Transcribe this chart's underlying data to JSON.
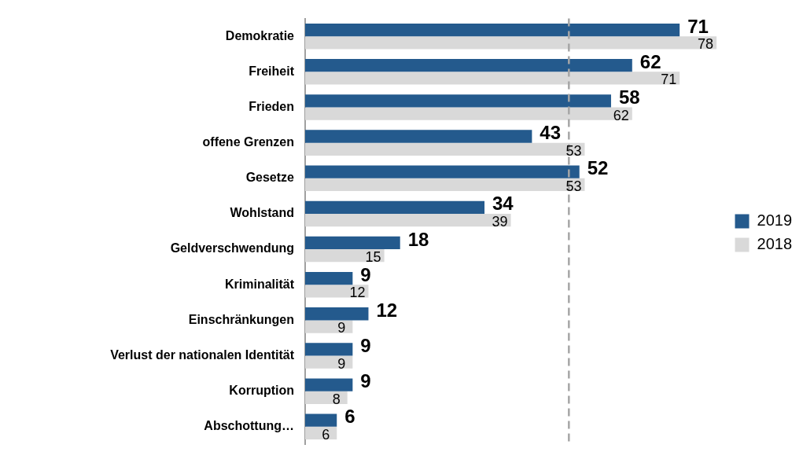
{
  "chart_data": {
    "type": "bar",
    "orientation": "horizontal",
    "categories": [
      "Demokratie",
      "Freiheit",
      "Frieden",
      "offene Grenzen",
      "Gesetze",
      "Wohlstand",
      "Geldverschwendung",
      "Kriminalität",
      "Einschränkungen",
      "Verlust der nationalen Identität",
      "Korruption",
      "Abschottung…"
    ],
    "series": [
      {
        "name": "2019",
        "color": "#245a8d",
        "values": [
          71,
          62,
          58,
          43,
          52,
          34,
          18,
          9,
          12,
          9,
          9,
          6
        ]
      },
      {
        "name": "2018",
        "color": "#d9d9d9",
        "values": [
          78,
          71,
          62,
          53,
          53,
          39,
          15,
          12,
          9,
          9,
          8,
          6
        ]
      }
    ],
    "tick_labels": "y",
    "data_labels": true,
    "legend": "right",
    "ref_lines": [
      {
        "axis": "x",
        "value": 50,
        "color": "#a6a6a6",
        "line_style": "dashed"
      }
    ]
  }
}
